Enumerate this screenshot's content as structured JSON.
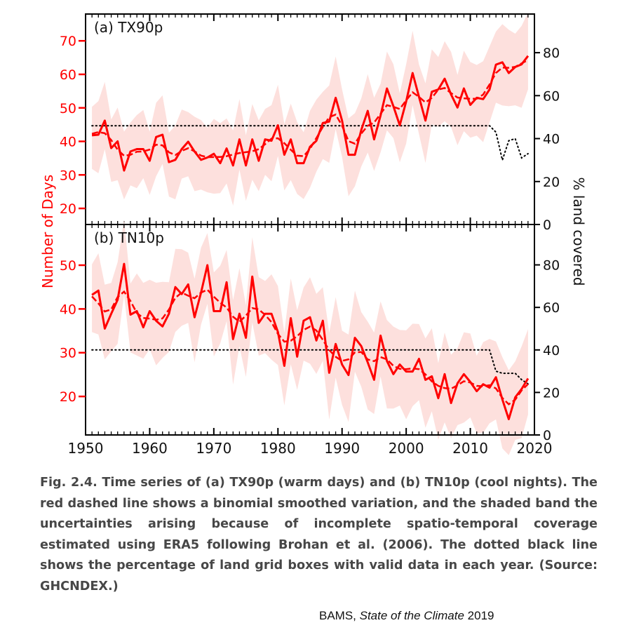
{
  "chart_data": [
    {
      "type": "line",
      "panel_label": "(a) TX90p",
      "x_start": 1951,
      "x_range": [
        1950,
        2020
      ],
      "ylim": [
        15.2,
        78
      ],
      "yticks": [
        20,
        30,
        40,
        50,
        60,
        70
      ],
      "right_ylim": [
        0,
        98
      ],
      "right_yticks": [
        0,
        20,
        40,
        60,
        80
      ],
      "values": [
        41.8,
        42,
        46.2,
        38,
        40,
        31.3,
        37,
        37.7,
        37.7,
        34.2,
        41.3,
        42,
        33.8,
        34.5,
        37.7,
        39.9,
        37,
        34.5,
        35.2,
        36.3,
        33.5,
        37.9,
        32.8,
        40.6,
        32.8,
        40.6,
        34.2,
        40.6,
        40.2,
        44.8,
        36,
        40.6,
        33.5,
        33.5,
        38.4,
        40.2,
        45.5,
        45.9,
        53,
        46.2,
        36,
        36,
        43.4,
        49.1,
        40.6,
        47.7,
        55.8,
        50.5,
        44.8,
        51.9,
        60.4,
        53.3,
        46.2,
        54.8,
        55.5,
        58.7,
        54,
        50.1,
        55.8,
        50.9,
        53,
        52.6,
        55.5,
        62.9,
        63.6,
        60.4,
        62.2,
        63,
        65.5
      ],
      "uncertainty_halfwidth": 10,
      "coverage_percent": [
        46,
        46,
        46,
        46,
        46,
        46,
        46,
        46,
        46,
        46,
        46,
        46,
        46,
        46,
        46,
        46,
        46,
        46,
        46,
        46,
        46,
        46,
        46,
        46,
        46,
        46,
        46,
        46,
        46,
        46,
        46,
        46,
        46,
        46,
        46,
        46,
        46,
        46,
        46,
        46,
        46,
        46,
        46,
        46,
        46,
        46,
        46,
        46,
        46,
        46,
        46,
        46,
        46,
        46,
        46,
        46,
        46,
        46,
        46,
        46,
        46,
        46,
        46,
        43,
        30,
        39,
        40,
        31,
        33
      ]
    },
    {
      "type": "line",
      "panel_label": "(b) TN10p",
      "x_start": 1951,
      "x_range": [
        1950,
        2020
      ],
      "ylim": [
        11.2,
        59.3
      ],
      "yticks": [
        20,
        30,
        40,
        50
      ],
      "right_ylim": [
        0,
        99
      ],
      "right_yticks": [
        0,
        20,
        40,
        60,
        80
      ],
      "values": [
        43.2,
        44.2,
        35.5,
        38.9,
        42.1,
        50.3,
        38.7,
        39.5,
        35.8,
        39.5,
        37.3,
        36,
        38.9,
        45,
        43.4,
        45.6,
        38.1,
        43.7,
        50,
        39.5,
        39.5,
        46.1,
        33.1,
        38.9,
        33.4,
        47.4,
        36.8,
        38.9,
        38.9,
        34.7,
        27,
        37.9,
        29.1,
        37.3,
        38.1,
        32.8,
        37.3,
        25.4,
        32,
        27.3,
        24.9,
        33.4,
        31.5,
        27.8,
        23.8,
        33.9,
        28.1,
        25.1,
        27.3,
        25.7,
        25.7,
        28.6,
        23.8,
        24.6,
        19.6,
        25.1,
        18.5,
        23,
        25.1,
        23.3,
        21.2,
        22.8,
        22,
        24.4,
        19.3,
        14.8,
        19.8,
        21.7,
        24.1
      ],
      "uncertainty_halfwidth": 8.5,
      "coverage_percent": [
        40,
        40,
        40,
        40,
        40,
        40,
        40,
        40,
        40,
        40,
        40,
        40,
        40,
        40,
        40,
        40,
        40,
        40,
        40,
        40,
        40,
        40,
        40,
        40,
        40,
        40,
        40,
        40,
        40,
        40,
        40,
        40,
        40,
        40,
        40,
        40,
        40,
        40,
        40,
        40,
        40,
        40,
        40,
        40,
        40,
        40,
        40,
        40,
        40,
        40,
        40,
        40,
        40,
        40,
        40,
        40,
        40,
        40,
        40,
        40,
        40,
        40,
        40,
        30,
        29,
        29,
        29,
        26,
        24
      ]
    }
  ],
  "axes": {
    "left_label": "Number of Days",
    "right_label": "% land covered",
    "xticks": [
      "1950",
      "1960",
      "1970",
      "1980",
      "1990",
      "2000",
      "2010",
      "2020"
    ]
  },
  "colors": {
    "series": "#ff0000",
    "band": "#fde0dd",
    "coverage": "#000000",
    "caption": "#474747"
  },
  "caption": "Fig. 2.4. Time series of (a) TX90p (warm days) and (b) TN10p (cool nights). The red dashed line shows a binomial smoothed variation, and the shaded band the uncertainties arising because of incomplete spatio-temporal coverage estimated using ERA5 following Brohan et al. (2006). The dotted black line shows the percentage of land grid boxes with valid data in each year. (Source: GHCNDEX.)",
  "credit": {
    "prefix": "BAMS, ",
    "title": "State of the Climate",
    "year": " 2019"
  }
}
